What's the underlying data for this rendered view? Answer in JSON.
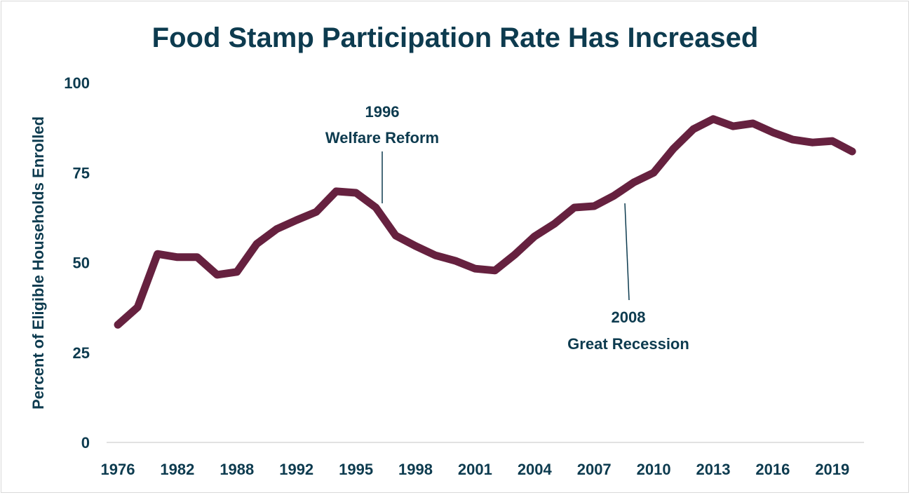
{
  "chart_data": {
    "type": "line",
    "title": "Food Stamp Participation Rate Has Increased",
    "xlabel": "",
    "ylabel": "Percent of Eligible Households Enrolled",
    "ylim": [
      0,
      100
    ],
    "yticks": [
      "0",
      "25",
      "50",
      "75",
      "100"
    ],
    "xtick_labels": [
      "1976",
      "1982",
      "1988",
      "1992",
      "1995",
      "1998",
      "2001",
      "2004",
      "2007",
      "2010",
      "2013",
      "2016",
      "2019"
    ],
    "grid": false,
    "line_color": "#66213f",
    "text_color": "#0d3b4f",
    "x": [
      1976,
      1978,
      1980,
      1982,
      1984,
      1986,
      1988,
      1989,
      1990,
      1992,
      1993,
      1994,
      1995,
      1996,
      1997,
      1998,
      1999,
      2000,
      2001,
      2002,
      2003,
      2004,
      2005,
      2006,
      2007,
      2008,
      2009,
      2010,
      2011,
      2012,
      2013,
      2014,
      2015,
      2016,
      2017,
      2018,
      2019,
      2020
    ],
    "series": [
      {
        "values": [
          32.7,
          37.6,
          52.4,
          51.5,
          51.5,
          46.6,
          47.4,
          55.2,
          59.3,
          61.8,
          64.1,
          69.8,
          69.4,
          65.3,
          57.5,
          54.6,
          52.0,
          50.5,
          48.3,
          47.8,
          52.2,
          57.3,
          60.8,
          65.3,
          65.7,
          68.6,
          72.3,
          75.0,
          81.7,
          87.1,
          89.9,
          87.9,
          88.7,
          86.2,
          84.2,
          83.4,
          83.8,
          80.9
        ]
      }
    ],
    "annotations": [
      {
        "year": "1996",
        "label": "Welfare Reform"
      },
      {
        "year": "2008",
        "label": "Great Recession"
      }
    ]
  }
}
